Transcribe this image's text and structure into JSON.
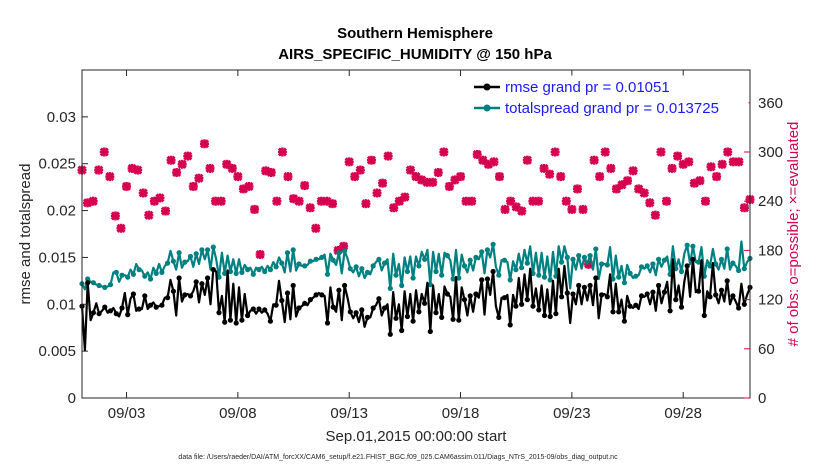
{
  "chart_data": {
    "type": "line",
    "title": "Southern Hemisphere",
    "subtitle": "AIRS_SPECIFIC_HUMIDITY @ 150 hPa",
    "xlabel": "Sep.01,2015 00:00:00 start",
    "ylabel_left": "rmse and totalspread",
    "ylabel_right": "# of obs: o=possible; ×=evaluated",
    "footer": "data file: /Users/raeder/DAI/ATM_forcXX/CAM6_setup/f.e21.FHIST_BGC.f09_025.CAM6assim.011/Diags_NTrS_2015-09/obs_diag_output.nc",
    "xlim": [
      0,
      30
    ],
    "ylim_left": [
      0,
      0.035
    ],
    "ylim_right": [
      0,
      400
    ],
    "x_ticks": [
      {
        "x": 2,
        "label": "09/03"
      },
      {
        "x": 7,
        "label": "09/08"
      },
      {
        "x": 12,
        "label": "09/13"
      },
      {
        "x": 17,
        "label": "09/18"
      },
      {
        "x": 22,
        "label": "09/23"
      },
      {
        "x": 27,
        "label": "09/28"
      }
    ],
    "y_ticks_left": [
      {
        "v": 0,
        "label": "0"
      },
      {
        "v": 0.005,
        "label": "0.005"
      },
      {
        "v": 0.01,
        "label": "0.01"
      },
      {
        "v": 0.015,
        "label": "0.015"
      },
      {
        "v": 0.02,
        "label": "0.02"
      },
      {
        "v": 0.025,
        "label": "0.025"
      },
      {
        "v": 0.03,
        "label": "0.03"
      }
    ],
    "y_ticks_right": [
      {
        "v": 0,
        "label": "0"
      },
      {
        "v": 60,
        "label": "60"
      },
      {
        "v": 120,
        "label": "120"
      },
      {
        "v": 180,
        "label": "180"
      },
      {
        "v": 240,
        "label": "240"
      },
      {
        "v": 300,
        "label": "300"
      },
      {
        "v": 360,
        "label": "360"
      }
    ],
    "legend_position": "top-right",
    "series": [
      {
        "name": "rmse grand pr = 0.01051",
        "axis": "left",
        "color": "#000000",
        "marker": "dot",
        "values": [
          0.0098,
          0.0051,
          0.0123,
          0.0083,
          0.0091,
          0.0101,
          0.009,
          0.0093,
          0.0097,
          0.0091,
          0.0093,
          0.0096,
          0.009,
          0.0087,
          0.0096,
          0.0112,
          0.0089,
          0.0106,
          0.0111,
          0.0093,
          0.0095,
          0.0095,
          0.0109,
          0.0095,
          0.0099,
          0.0102,
          0.0097,
          0.0098,
          0.0099,
          0.0107,
          0.0107,
          0.0126,
          0.0114,
          0.0088,
          0.0128,
          0.0103,
          0.011,
          0.0111,
          0.0109,
          0.0114,
          0.0124,
          0.0102,
          0.0122,
          0.011,
          0.0128,
          0.01,
          0.0137,
          0.0135,
          0.0091,
          0.0109,
          0.0081,
          0.0136,
          0.0083,
          0.0122,
          0.008,
          0.0118,
          0.0083,
          0.0111,
          0.0088,
          0.0093,
          0.0095,
          0.009,
          0.0095,
          0.0091,
          0.0094,
          0.009,
          0.0082,
          0.01,
          0.0099,
          0.0125,
          0.0104,
          0.0081,
          0.0112,
          0.0084,
          0.012,
          0.0087,
          0.0096,
          0.0098,
          0.0101,
          0.0099,
          0.0105,
          0.0107,
          0.011,
          0.0112,
          0.011,
          0.0109,
          0.008,
          0.0118,
          0.0097,
          0.0092,
          0.0115,
          0.0083,
          0.012,
          0.0107,
          0.0092,
          0.0085,
          0.0091,
          0.0081,
          0.0094,
          0.0076,
          0.0086,
          0.0086,
          0.0096,
          0.0099,
          0.0106,
          0.0088,
          0.0096,
          0.01,
          0.0068,
          0.0113,
          0.0085,
          0.01,
          0.0072,
          0.0114,
          0.0087,
          0.0111,
          0.0082,
          0.0115,
          0.0092,
          0.0111,
          0.0101,
          0.0123,
          0.0071,
          0.012,
          0.0091,
          0.0111,
          0.0086,
          0.0119,
          0.0111,
          0.0108,
          0.0084,
          0.0129,
          0.0083,
          0.0118,
          0.0105,
          0.0088,
          0.0109,
          0.0092,
          0.0111,
          0.0107,
          0.0126,
          0.0089,
          0.0127,
          0.011,
          0.0135,
          0.0098,
          0.0086,
          0.0107,
          0.0107,
          0.011,
          0.0078,
          0.011,
          0.0098,
          0.0128,
          0.01,
          0.0132,
          0.0105,
          0.0138,
          0.0098,
          0.0117,
          0.0094,
          0.012,
          0.0088,
          0.0116,
          0.0087,
          0.0125,
          0.009,
          0.0138,
          0.0108,
          0.0141,
          0.0112,
          0.008,
          0.0111,
          0.01,
          0.012,
          0.01,
          0.0118,
          0.0104,
          0.012,
          0.0099,
          0.0128,
          0.0085,
          0.011,
          0.0111,
          0.0108,
          0.0132,
          0.0092,
          0.0122,
          0.0092,
          0.0105,
          0.0082,
          0.0109,
          0.0098,
          0.0096,
          0.0099,
          0.0095,
          0.0109,
          0.0108,
          0.0111,
          0.01,
          0.0113,
          0.0093,
          0.012,
          0.0101,
          0.0113,
          0.0124,
          0.0093,
          0.0148,
          0.0105,
          0.012,
          0.0097,
          0.0124,
          0.0141,
          0.0108,
          0.0148,
          0.0113,
          0.0114,
          0.0147,
          0.0088,
          0.0114,
          0.0108,
          0.0144,
          0.011,
          0.0101,
          0.0115,
          0.0103,
          0.0125,
          0.01,
          0.0109,
          0.0103,
          0.0096,
          0.0122,
          0.01,
          0.011,
          0.0118
        ]
      },
      {
        "name": "totalspread grand pr = 0.013725",
        "axis": "left",
        "color": "#008080",
        "marker": "dot",
        "values": [
          0.0122,
          0.0116,
          0.0127,
          0.0124,
          0.0123,
          0.0121,
          0.012,
          0.0119,
          0.0118,
          0.0119,
          0.0121,
          0.0134,
          0.0134,
          0.0124,
          0.0131,
          0.0131,
          0.0129,
          0.0137,
          0.0132,
          0.0143,
          0.0137,
          0.0136,
          0.013,
          0.0134,
          0.0127,
          0.0139,
          0.0133,
          0.0143,
          0.0134,
          0.0141,
          0.0144,
          0.0157,
          0.0146,
          0.0137,
          0.0155,
          0.0139,
          0.0145,
          0.0146,
          0.0151,
          0.014,
          0.0154,
          0.0143,
          0.0158,
          0.0148,
          0.0158,
          0.0137,
          0.0161,
          0.0148,
          0.0129,
          0.0155,
          0.0133,
          0.0152,
          0.0135,
          0.0148,
          0.0133,
          0.0148,
          0.0134,
          0.0142,
          0.0137,
          0.0139,
          0.0132,
          0.0139,
          0.0137,
          0.014,
          0.0135,
          0.0141,
          0.0137,
          0.0145,
          0.014,
          0.015,
          0.0144,
          0.0134,
          0.0155,
          0.0135,
          0.0158,
          0.0136,
          0.0143,
          0.0141,
          0.0141,
          0.0142,
          0.0146,
          0.0146,
          0.0148,
          0.0148,
          0.015,
          0.0153,
          0.0132,
          0.0154,
          0.0147,
          0.0142,
          0.0155,
          0.0133,
          0.0157,
          0.0149,
          0.0138,
          0.0134,
          0.014,
          0.013,
          0.0138,
          0.0128,
          0.0134,
          0.0132,
          0.0141,
          0.0145,
          0.0148,
          0.0136,
          0.0144,
          0.0148,
          0.0117,
          0.0154,
          0.0131,
          0.0143,
          0.012,
          0.015,
          0.0135,
          0.0151,
          0.0128,
          0.0151,
          0.0141,
          0.0156,
          0.0148,
          0.0158,
          0.0121,
          0.0156,
          0.0135,
          0.0154,
          0.0131,
          0.0155,
          0.0152,
          0.0147,
          0.0127,
          0.0158,
          0.0128,
          0.0153,
          0.0141,
          0.0134,
          0.0147,
          0.0136,
          0.015,
          0.0148,
          0.0156,
          0.0133,
          0.0158,
          0.015,
          0.0164,
          0.014,
          0.0131,
          0.0147,
          0.0147,
          0.0145,
          0.0126,
          0.0146,
          0.0137,
          0.0154,
          0.0139,
          0.0158,
          0.0144,
          0.0162,
          0.0133,
          0.0155,
          0.0131,
          0.0155,
          0.0129,
          0.0151,
          0.0126,
          0.0156,
          0.013,
          0.0162,
          0.0145,
          0.0162,
          0.015,
          0.0117,
          0.0148,
          0.0137,
          0.0152,
          0.0138,
          0.015,
          0.0143,
          0.0152,
          0.0137,
          0.0159,
          0.0127,
          0.0143,
          0.0143,
          0.0142,
          0.0161,
          0.0127,
          0.0152,
          0.0129,
          0.0141,
          0.0123,
          0.0142,
          0.0133,
          0.0128,
          0.013,
          0.0131,
          0.014,
          0.0138,
          0.0141,
          0.0134,
          0.0143,
          0.0131,
          0.0148,
          0.014,
          0.0147,
          0.0151,
          0.0132,
          0.0162,
          0.0138,
          0.0148,
          0.0135,
          0.0154,
          0.0163,
          0.0143,
          0.0162,
          0.0145,
          0.0145,
          0.0161,
          0.013,
          0.0147,
          0.0141,
          0.0159,
          0.0143,
          0.0137,
          0.0148,
          0.0138,
          0.0159,
          0.0137,
          0.0144,
          0.0141,
          0.0136,
          0.0167,
          0.0138,
          0.0145,
          0.0149
        ]
      },
      {
        "name": "# of obs (evaluated)",
        "axis": "right",
        "color": "#d7004f",
        "marker": "x",
        "x": [
          0,
          0.25,
          0.5,
          0.75,
          1,
          1.25,
          1.5,
          1.75,
          2,
          2.25,
          2.5,
          2.75,
          3,
          3.25,
          3.5,
          3.75,
          4,
          4.25,
          4.5,
          4.75,
          5,
          5.25,
          5.5,
          5.75,
          6,
          6.25,
          6.5,
          6.75,
          7,
          7.25,
          7.5,
          7.75,
          8,
          8.25,
          8.5,
          8.75,
          9,
          9.25,
          9.5,
          9.75,
          10,
          10.25,
          10.5,
          10.75,
          11,
          11.25,
          11.5,
          11.75,
          12,
          12.25,
          12.5,
          12.75,
          13,
          13.25,
          13.5,
          13.75,
          14,
          14.25,
          14.5,
          14.75,
          15,
          15.25,
          15.5,
          15.75,
          16,
          16.25,
          16.5,
          16.75,
          17,
          17.25,
          17.5,
          17.75,
          18,
          18.25,
          18.5,
          18.75,
          19,
          19.25,
          19.5,
          19.75,
          20,
          20.25,
          20.5,
          20.75,
          21,
          21.25,
          21.5,
          21.75,
          22,
          22.25,
          22.5,
          22.75,
          23,
          23.25,
          23.5,
          23.75,
          24,
          24.25,
          24.5,
          24.75,
          25,
          25.25,
          25.5,
          25.75,
          26,
          26.25,
          26.5,
          26.75,
          27,
          27.25,
          27.5,
          27.75,
          28,
          28.25,
          28.5,
          28.75,
          29,
          29.25,
          29.5,
          29.75,
          30
        ],
        "values": [
          278,
          238,
          240,
          278,
          300,
          270,
          222,
          207,
          258,
          280,
          278,
          250,
          223,
          240,
          244,
          228,
          290,
          275,
          285,
          295,
          258,
          268,
          310,
          280,
          240,
          240,
          285,
          280,
          270,
          255,
          258,
          230,
          175,
          277,
          275,
          240,
          300,
          270,
          243,
          240,
          259,
          232,
          207,
          240,
          240,
          237,
          180,
          185,
          288,
          270,
          278,
          237,
          290,
          250,
          262,
          295,
          232,
          240,
          245,
          278,
          270,
          266,
          263,
          263,
          275,
          300,
          258,
          266,
          270,
          240,
          240,
          297,
          290,
          285,
          288,
          270,
          230,
          240,
          233,
          228,
          290,
          240,
          240,
          280,
          273,
          300,
          270,
          240,
          230,
          255,
          230,
          163,
          290,
          270,
          300,
          280,
          255,
          260,
          265,
          277,
          255,
          250,
          238,
          223,
          300,
          240,
          280,
          295,
          285,
          288,
          262,
          265,
          240,
          282,
          270,
          285,
          300,
          288,
          288,
          232,
          242
        ]
      }
    ]
  }
}
